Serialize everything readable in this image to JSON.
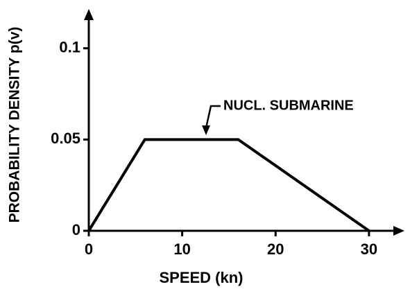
{
  "chart_data": {
    "type": "line",
    "xlabel": "SPEED (kn)",
    "ylabel": "PROBABILITY DENSITY p(v)",
    "x": [
      0,
      6,
      16,
      30
    ],
    "series": [
      {
        "name": "NUCL. SUBMARINE",
        "color": "#000000",
        "values": [
          0,
          0.05,
          0.05,
          0
        ]
      }
    ],
    "xlim": [
      0,
      33.5
    ],
    "xticks": [
      0,
      10,
      20,
      30
    ],
    "ylim": [
      0,
      0.12
    ],
    "yticks": [
      0,
      0.05,
      0.1
    ],
    "grid": false
  }
}
